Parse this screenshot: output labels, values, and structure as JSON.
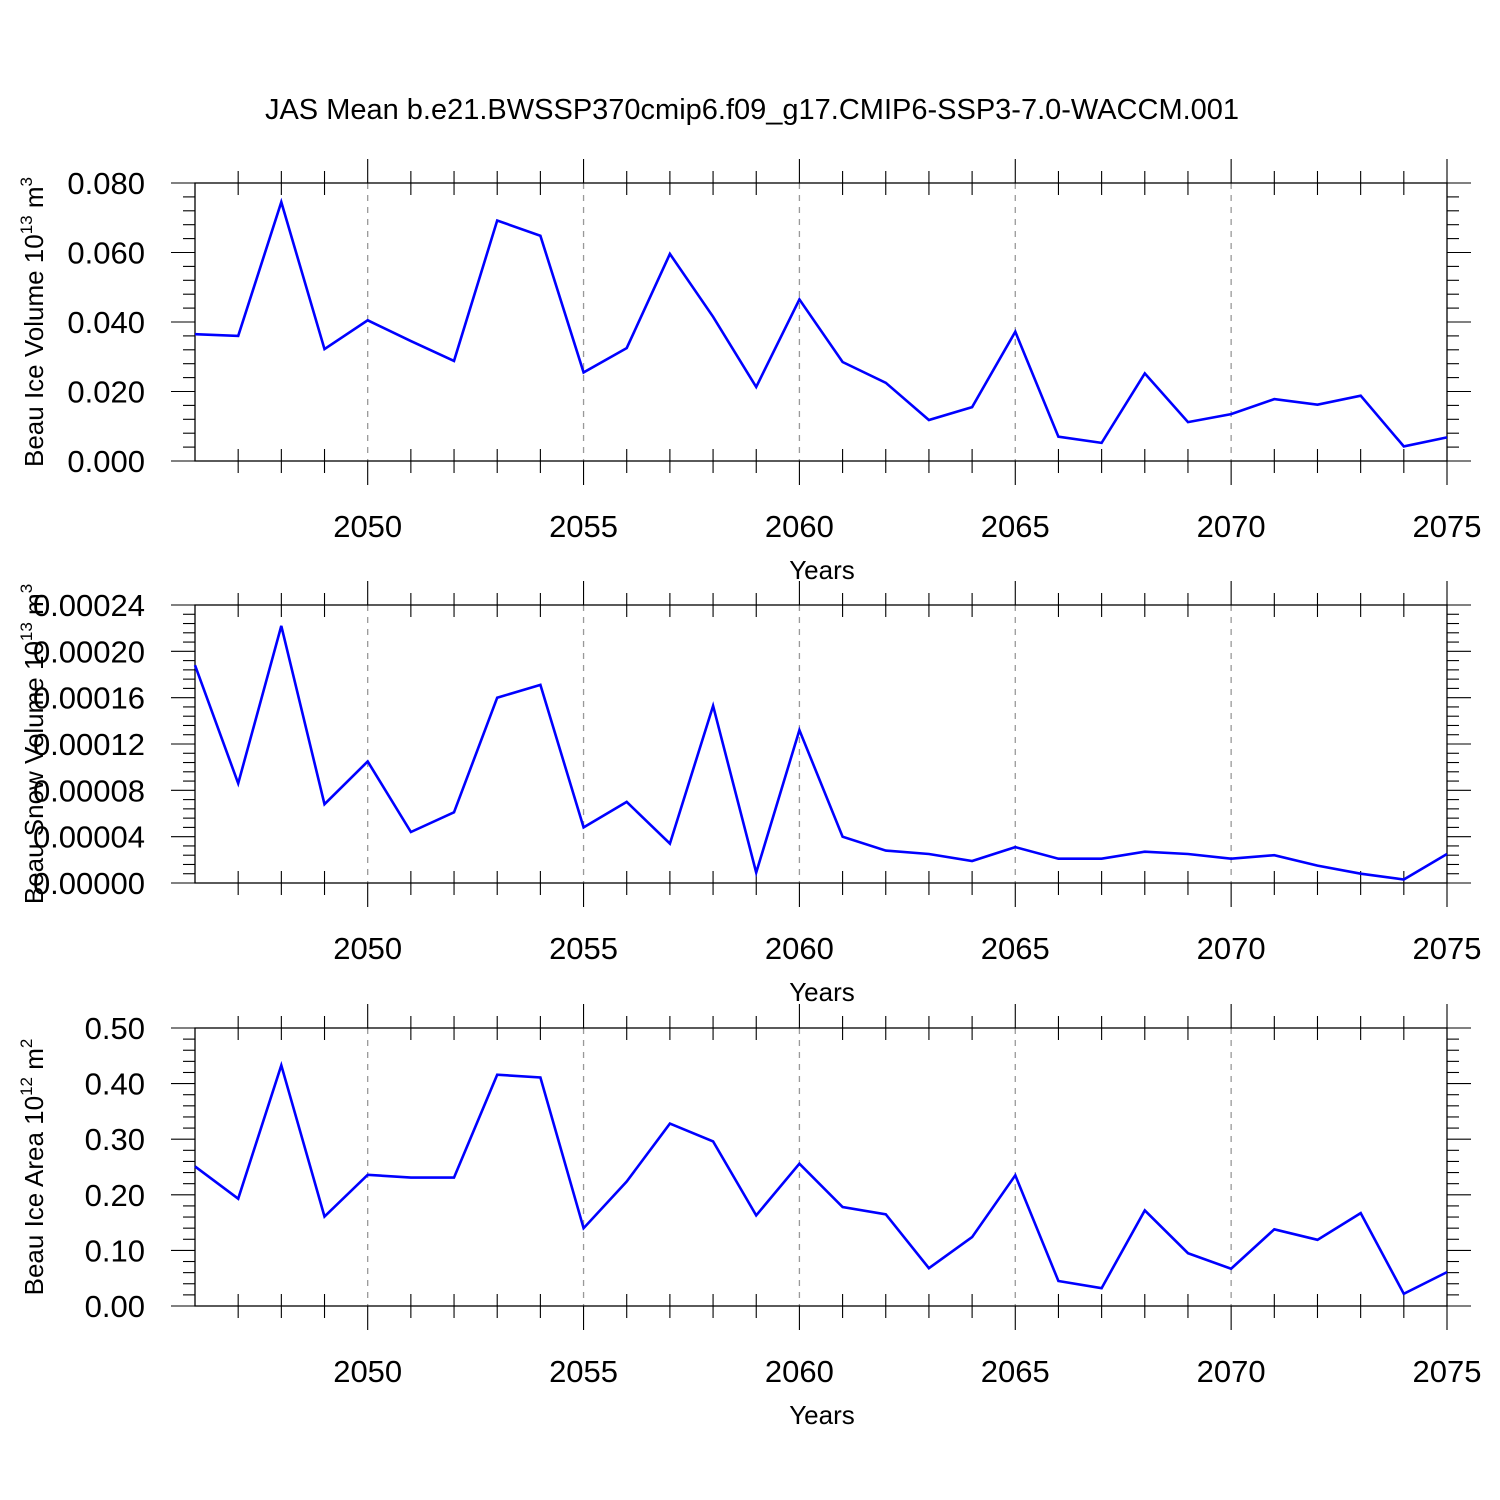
{
  "page_title": "JAS Mean b.e21.BWSSP370cmip6.f09_g17.CMIP6-SSP3-7.0-WACCM.001",
  "chart_data": [
    {
      "type": "line",
      "ylabel": "Beau Ice Volume 10",
      "ylabel_sup": "13",
      "ylabel_unit": "m",
      "ylabel_unit_sup": "3",
      "xlabel": "Years",
      "xlim": [
        2046,
        2075
      ],
      "ylim": [
        0,
        0.08
      ],
      "yticks": [
        0.0,
        0.02,
        0.04,
        0.06,
        0.08
      ],
      "yticklabels": [
        "0.000",
        "0.020",
        "0.040",
        "0.060",
        "0.080"
      ],
      "xticks": [
        2050,
        2055,
        2060,
        2065,
        2070,
        2075
      ],
      "xticklabels": [
        "2050",
        "2055",
        "2060",
        "2065",
        "2070",
        "2075"
      ],
      "x": [
        2046,
        2047,
        2048,
        2049,
        2050,
        2051,
        2052,
        2053,
        2054,
        2055,
        2056,
        2057,
        2058,
        2059,
        2060,
        2061,
        2062,
        2063,
        2064,
        2065,
        2066,
        2067,
        2068,
        2069,
        2070,
        2071,
        2072,
        2073,
        2074,
        2075
      ],
      "values": [
        0.0365,
        0.036,
        0.0745,
        0.0322,
        0.0405,
        0.0345,
        0.0288,
        0.0692,
        0.0648,
        0.0255,
        0.0325,
        0.0596,
        0.0415,
        0.0213,
        0.0465,
        0.0285,
        0.0225,
        0.0118,
        0.0155,
        0.0372,
        0.007,
        0.0052,
        0.0252,
        0.0112,
        0.0135,
        0.0178,
        0.0162,
        0.0188,
        0.0042,
        0.0068
      ]
    },
    {
      "type": "line",
      "ylabel": "Beau Snow Volume 10",
      "ylabel_sup": "13",
      "ylabel_unit": "m",
      "ylabel_unit_sup": "3",
      "xlabel": "Years",
      "xlim": [
        2046,
        2075
      ],
      "ylim": [
        0,
        0.00024
      ],
      "yticks": [
        0.0,
        4e-05,
        8e-05,
        0.00012,
        0.00016,
        0.0002,
        0.00024
      ],
      "yticklabels": [
        "0.00000",
        "0.00004",
        "0.00008",
        "0.00012",
        "0.00016",
        "0.00020",
        "0.00024"
      ],
      "xticks": [
        2050,
        2055,
        2060,
        2065,
        2070,
        2075
      ],
      "xticklabels": [
        "2050",
        "2055",
        "2060",
        "2065",
        "2070",
        "2075"
      ],
      "x": [
        2046,
        2047,
        2048,
        2049,
        2050,
        2051,
        2052,
        2053,
        2054,
        2055,
        2056,
        2057,
        2058,
        2059,
        2060,
        2061,
        2062,
        2063,
        2064,
        2065,
        2066,
        2067,
        2068,
        2069,
        2070,
        2071,
        2072,
        2073,
        2074,
        2075
      ],
      "values": [
        0.000188,
        8.6e-05,
        0.000222,
        6.8e-05,
        0.000105,
        4.4e-05,
        6.1e-05,
        0.00016,
        0.000171,
        4.8e-05,
        7e-05,
        3.4e-05,
        0.000153,
        9e-06,
        0.000132,
        4e-05,
        2.8e-05,
        2.5e-05,
        1.9e-05,
        3.1e-05,
        2.1e-05,
        2.1e-05,
        2.7e-05,
        2.5e-05,
        2.1e-05,
        2.4e-05,
        1.5e-05,
        8e-06,
        3e-06,
        2.5e-05
      ]
    },
    {
      "type": "line",
      "ylabel": "Beau Ice Area 10",
      "ylabel_sup": "12",
      "ylabel_unit": "m",
      "ylabel_unit_sup": "2",
      "xlabel": "Years",
      "xlim": [
        2046,
        2075
      ],
      "ylim": [
        0,
        0.5
      ],
      "yticks": [
        0.0,
        0.1,
        0.2,
        0.3,
        0.4,
        0.5
      ],
      "yticklabels": [
        "0.00",
        "0.10",
        "0.20",
        "0.30",
        "0.40",
        "0.50"
      ],
      "xticks": [
        2050,
        2055,
        2060,
        2065,
        2070,
        2075
      ],
      "xticklabels": [
        "2050",
        "2055",
        "2060",
        "2065",
        "2070",
        "2075"
      ],
      "x": [
        2046,
        2047,
        2048,
        2049,
        2050,
        2051,
        2052,
        2053,
        2054,
        2055,
        2056,
        2057,
        2058,
        2059,
        2060,
        2061,
        2062,
        2063,
        2064,
        2065,
        2066,
        2067,
        2068,
        2069,
        2070,
        2071,
        2072,
        2073,
        2074,
        2075
      ],
      "values": [
        0.251,
        0.193,
        0.433,
        0.161,
        0.236,
        0.231,
        0.231,
        0.416,
        0.411,
        0.14,
        0.224,
        0.328,
        0.296,
        0.163,
        0.256,
        0.178,
        0.165,
        0.068,
        0.124,
        0.235,
        0.045,
        0.032,
        0.172,
        0.095,
        0.067,
        0.138,
        0.119,
        0.167,
        0.022,
        0.061
      ]
    }
  ],
  "colors": {
    "series": "#0000ff",
    "grid": "#999999",
    "axes": "#000000"
  }
}
